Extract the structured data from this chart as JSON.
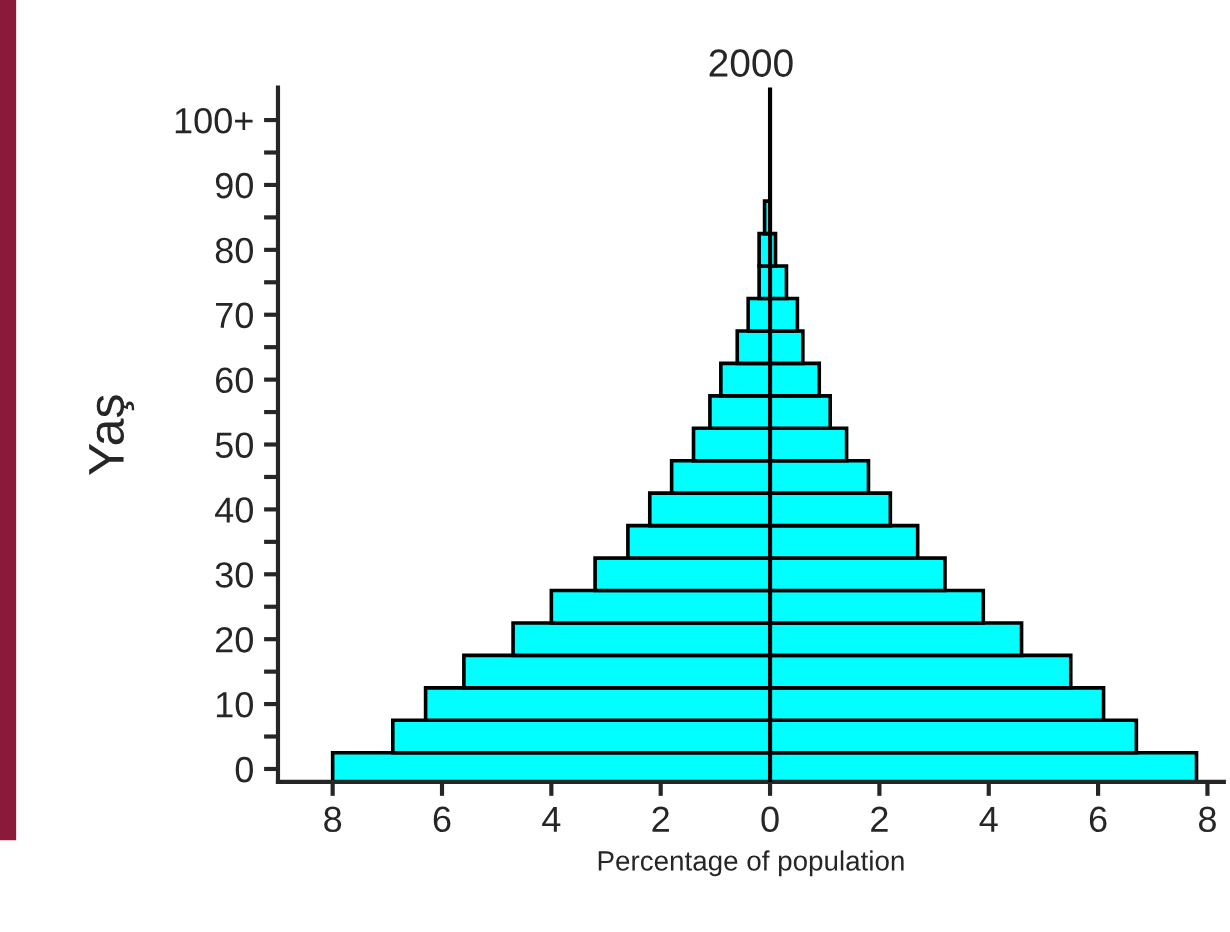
{
  "chart_data": {
    "type": "bar",
    "orientation": "horizontal",
    "title": "2000",
    "xlabel": "Percentage of population",
    "ylabel": "Yaş",
    "x": [
      0,
      5,
      10,
      15,
      20,
      25,
      30,
      35,
      40,
      45,
      50,
      55,
      60,
      65,
      70,
      75,
      80,
      85
    ],
    "series": [
      {
        "color": "#00ffff",
        "values": [
          -8.0,
          -6.9,
          -6.3,
          -5.6,
          -4.7,
          -4.0,
          -3.2,
          -2.6,
          -2.2,
          -1.8,
          -1.4,
          -1.1,
          -0.9,
          -0.6,
          -0.4,
          -0.2,
          -0.2,
          -0.1
        ]
      },
      {
        "color": "#00ffff",
        "values": [
          7.8,
          6.7,
          6.1,
          5.5,
          4.6,
          3.9,
          3.2,
          2.7,
          2.2,
          1.8,
          1.4,
          1.1,
          0.9,
          0.6,
          0.5,
          0.3,
          0.1,
          null
        ]
      }
    ],
    "xlim": [
      -9,
      8.3
    ],
    "xticks": [
      {
        "value": -8,
        "label": "8"
      },
      {
        "value": -6,
        "label": "6"
      },
      {
        "value": -4,
        "label": "4"
      },
      {
        "value": -2,
        "label": "2"
      },
      0,
      2,
      4,
      6,
      8
    ],
    "ylim": [
      -2,
      105
    ],
    "yticks": [
      0,
      {
        "value": 5,
        "label": null
      },
      10,
      {
        "value": 15,
        "label": null
      },
      20,
      {
        "value": 25,
        "label": null
      },
      30,
      {
        "value": 35,
        "label": null
      },
      40,
      {
        "value": 45,
        "label": null
      },
      50,
      {
        "value": 55,
        "label": null
      },
      60,
      {
        "value": 65,
        "label": null
      },
      70,
      {
        "value": 75,
        "label": null
      },
      80,
      {
        "value": 85,
        "label": null
      },
      90,
      {
        "value": 95,
        "label": null
      },
      {
        "value": 100,
        "label": "100+"
      }
    ],
    "ref_lines": [
      {
        "axis": "x",
        "value": 0,
        "color": "#000000"
      }
    ],
    "stacked": true,
    "grid": false,
    "legend": false
  }
}
